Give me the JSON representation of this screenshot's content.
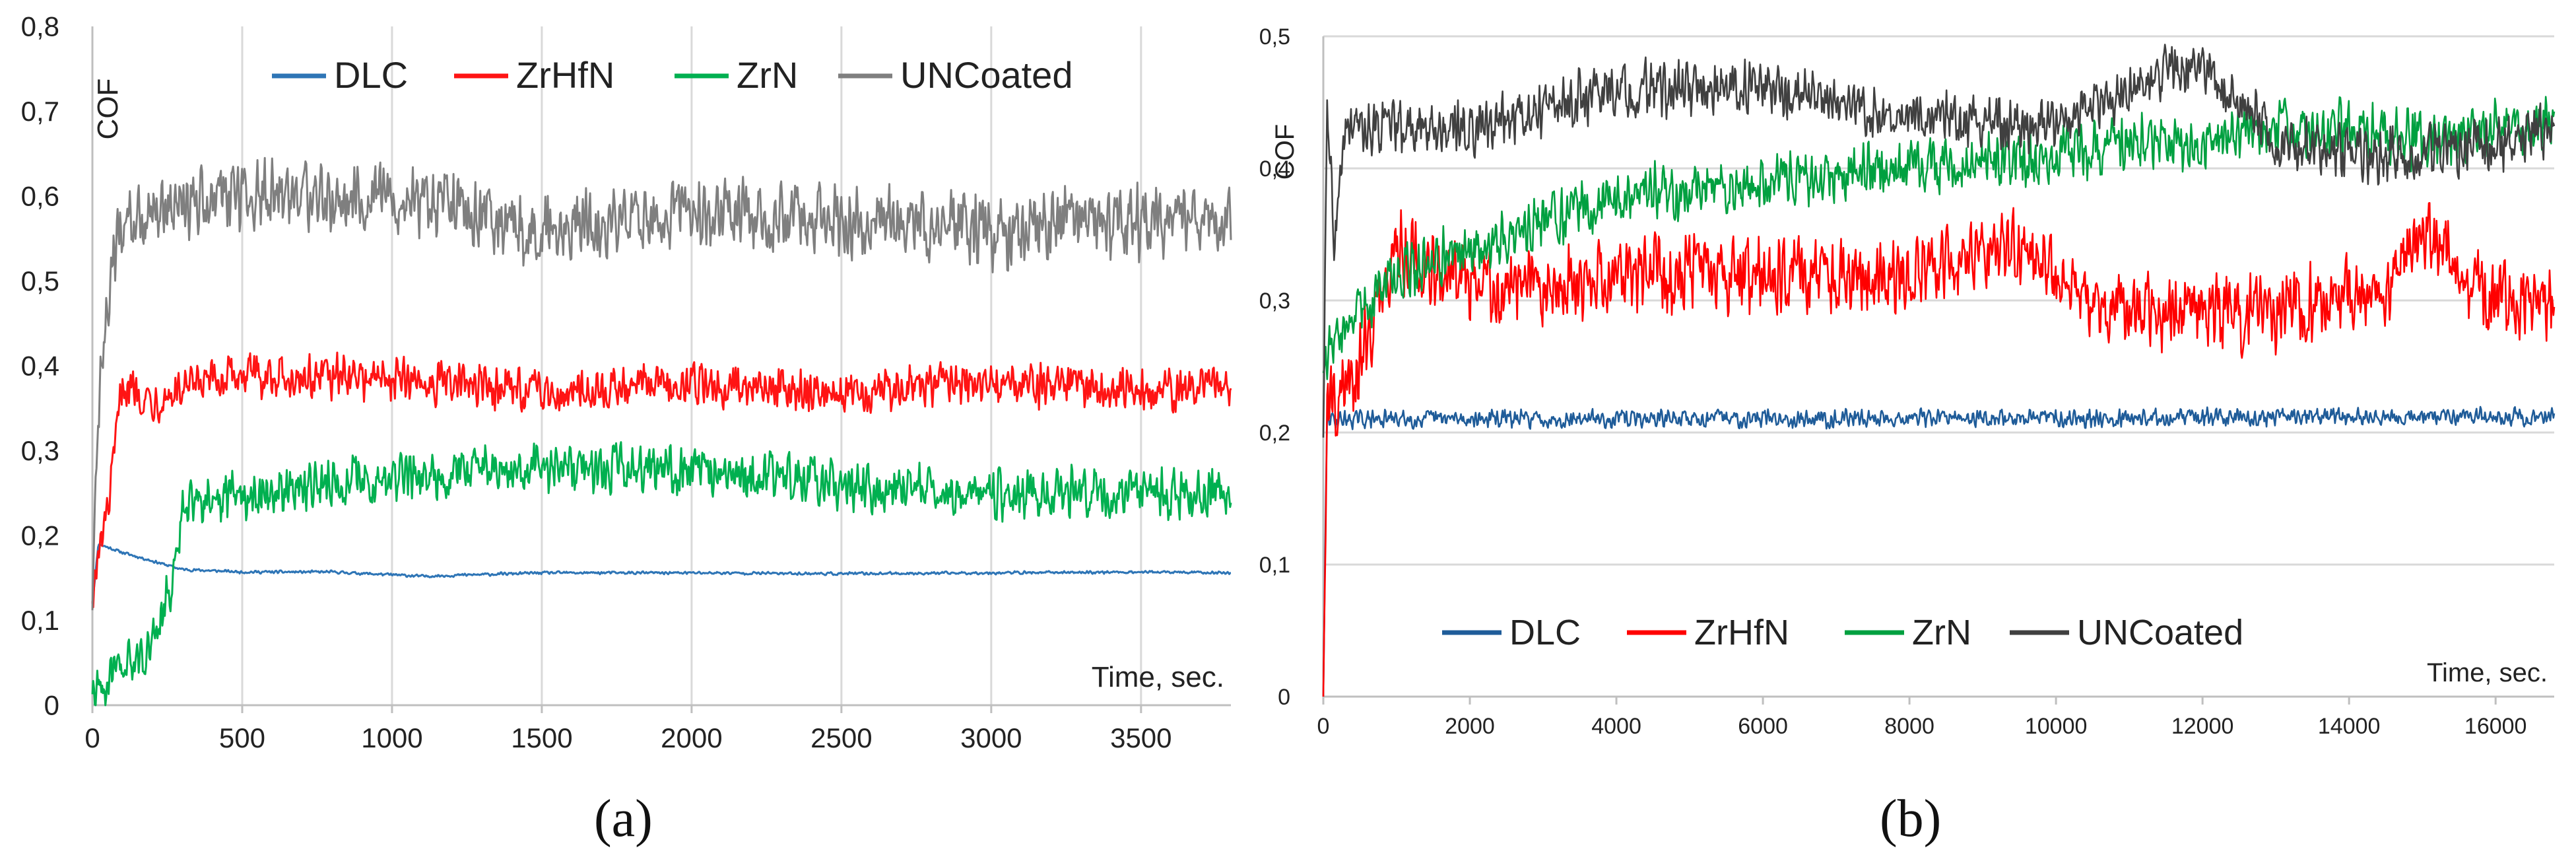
{
  "chart_data": [
    {
      "panel": "a",
      "type": "line",
      "ylabel": "COF",
      "xlabel": "Time, sec.",
      "xlim": [
        0,
        3800
      ],
      "ylim": [
        0,
        0.8
      ],
      "x_ticks": [
        0,
        500,
        1000,
        1500,
        2000,
        2500,
        3000,
        3500
      ],
      "x_tick_labels": [
        "0",
        "500",
        "1000",
        "1500",
        "2000",
        "2500",
        "3000",
        "3500"
      ],
      "y_ticks": [
        0,
        0.1,
        0.2,
        0.3,
        0.4,
        0.5,
        0.6,
        0.7,
        0.8
      ],
      "y_tick_labels": [
        "0",
        "0,1",
        "0,2",
        "0,3",
        "0,4",
        "0,5",
        "0,6",
        "0,7",
        "0,8"
      ],
      "grid": "vertical",
      "legend_position": "top",
      "series": [
        {
          "name": "DLC",
          "color": "#2E75B6",
          "noise": 0.002,
          "x": [
            0,
            20,
            100,
            300,
            500,
            800,
            1100,
            1500,
            2000,
            2500,
            3000,
            3500,
            3800
          ],
          "y": [
            0.12,
            0.19,
            0.18,
            0.16,
            0.157,
            0.157,
            0.152,
            0.156,
            0.156,
            0.155,
            0.156,
            0.157,
            0.156
          ]
        },
        {
          "name": "ZrHfN",
          "color": "#FF1414",
          "noise": 0.03,
          "x": [
            0,
            20,
            60,
            100,
            200,
            500,
            1000,
            1500,
            2000,
            2500,
            3000,
            3500,
            3800
          ],
          "y": [
            0.13,
            0.17,
            0.25,
            0.38,
            0.36,
            0.39,
            0.385,
            0.37,
            0.38,
            0.37,
            0.38,
            0.37,
            0.38
          ]
        },
        {
          "name": "ZrN",
          "color": "#00B050",
          "noise": 0.035,
          "x": [
            0,
            30,
            100,
            200,
            280,
            300,
            500,
            1000,
            1500,
            2000,
            2500,
            3000,
            3500,
            3800
          ],
          "y": [
            0.02,
            0.02,
            0.04,
            0.07,
            0.16,
            0.24,
            0.25,
            0.27,
            0.28,
            0.28,
            0.26,
            0.25,
            0.25,
            0.25
          ]
        },
        {
          "name": "UNCoated",
          "color": "#7F7F7F",
          "noise": 0.05,
          "x": [
            0,
            20,
            80,
            200,
            500,
            1000,
            1500,
            2000,
            2500,
            3000,
            3500,
            3800
          ],
          "y": [
            0.12,
            0.35,
            0.55,
            0.58,
            0.6,
            0.6,
            0.56,
            0.58,
            0.57,
            0.56,
            0.57,
            0.57
          ]
        }
      ]
    },
    {
      "panel": "b",
      "type": "line",
      "ylabel": "COF",
      "xlabel": "Time, sec.",
      "xlim": [
        0,
        16800
      ],
      "ylim": [
        0,
        0.5
      ],
      "x_ticks": [
        0,
        2000,
        4000,
        6000,
        8000,
        10000,
        12000,
        14000,
        16000
      ],
      "x_tick_labels": [
        "0",
        "2000",
        "4000",
        "6000",
        "8000",
        "10000",
        "12000",
        "14000",
        "16000"
      ],
      "y_ticks": [
        0,
        0.1,
        0.2,
        0.3,
        0.4,
        0.5
      ],
      "y_tick_labels": [
        "0",
        "0,1",
        "0,2",
        "0,3",
        "0,4",
        "0,5"
      ],
      "grid": "horizontal",
      "legend_position": "bottom",
      "series": [
        {
          "name": "DLC",
          "color": "#1F5C99",
          "noise": 0.008,
          "x": [
            0,
            50,
            100,
            16800
          ],
          "y": [
            0,
            0.21,
            0.21,
            0.212
          ]
        },
        {
          "name": "ZrHfN",
          "color": "#FF0000",
          "noise": 0.035,
          "x": [
            0,
            50,
            300,
            600,
            1000,
            2000,
            3000,
            4000,
            6000,
            8000,
            9500,
            10500,
            11000,
            12000,
            13000,
            14500,
            15000,
            16000,
            16800
          ],
          "y": [
            0,
            0.22,
            0.23,
            0.27,
            0.34,
            0.31,
            0.31,
            0.32,
            0.32,
            0.32,
            0.34,
            0.3,
            0.29,
            0.29,
            0.29,
            0.31,
            0.35,
            0.3,
            0.3
          ]
        },
        {
          "name": "ZrN",
          "color": "#00A040",
          "noise": 0.025,
          "x": [
            0,
            100,
            300,
            1000,
            2000,
            3000,
            4000,
            6000,
            8000,
            10000,
            11000,
            12000,
            13000,
            14000,
            15000,
            16000,
            16800
          ],
          "y": [
            0.25,
            0.26,
            0.28,
            0.32,
            0.34,
            0.36,
            0.38,
            0.39,
            0.4,
            0.41,
            0.42,
            0.42,
            0.43,
            0.43,
            0.42,
            0.43,
            0.43
          ]
        },
        {
          "name": "UNCoated",
          "color": "#404040",
          "noise": 0.025,
          "x": [
            0,
            50,
            150,
            300,
            1000,
            2000,
            4000,
            6000,
            8000,
            10000,
            11000,
            12000,
            13000,
            14000,
            15000,
            16000,
            16800
          ],
          "y": [
            0.2,
            0.44,
            0.34,
            0.43,
            0.43,
            0.43,
            0.46,
            0.46,
            0.44,
            0.43,
            0.46,
            0.48,
            0.42,
            0.41,
            0.41,
            0.42,
            0.43
          ]
        }
      ]
    }
  ],
  "captions": {
    "a": "(a)",
    "b": "(b)"
  }
}
